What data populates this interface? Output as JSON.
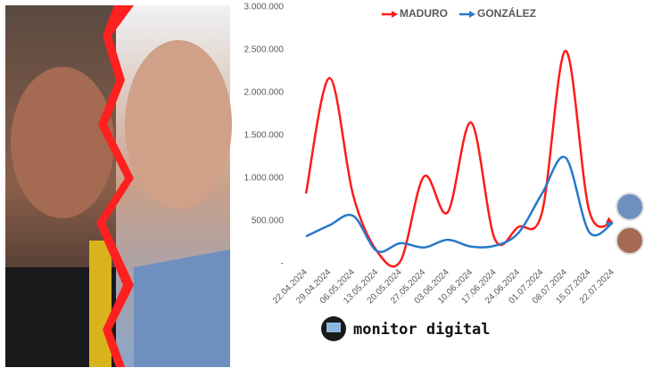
{
  "chart_data": {
    "type": "line",
    "categories": [
      "22.04.2024",
      "29.04.2024",
      "06.05.2024",
      "13.05.2024",
      "20.05.2024",
      "27.05.2024",
      "03.06.2024",
      "10.06.2024",
      "17.06.2024",
      "24.06.2024",
      "01.07.2024",
      "08.07.2024",
      "15.07.2024",
      "22.07.2024"
    ],
    "series": [
      {
        "name": "MADURO",
        "color": "#ff1a1a",
        "values": [
          820000,
          2170000,
          800000,
          150000,
          30000,
          1020000,
          600000,
          1650000,
          290000,
          430000,
          600000,
          2490000,
          620000,
          480000
        ]
      },
      {
        "name": "GONZÁLEZ",
        "color": "#2878c8",
        "values": [
          320000,
          450000,
          560000,
          150000,
          240000,
          190000,
          280000,
          200000,
          210000,
          360000,
          820000,
          1240000,
          370000,
          480000
        ]
      }
    ],
    "ylim": [
      0,
      3000000
    ],
    "yticks": [
      {
        "value": 0,
        "label": "-"
      },
      {
        "value": 500000,
        "label": "500.000"
      },
      {
        "value": 1000000,
        "label": "1.000.000"
      },
      {
        "value": 1500000,
        "label": "1.500.000"
      },
      {
        "value": 2000000,
        "label": "2.000.000"
      },
      {
        "value": 2500000,
        "label": "2.500.000"
      },
      {
        "value": 3000000,
        "label": "3.000.000"
      }
    ],
    "smooth": true,
    "legend": "top"
  },
  "logo": "monitor digital"
}
